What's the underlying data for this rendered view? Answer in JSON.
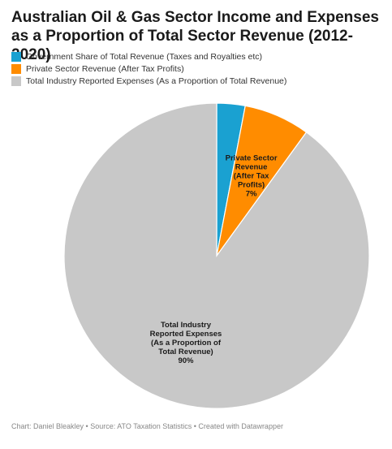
{
  "chart_data": {
    "type": "pie",
    "title": "Australian Oil & Gas Sector Income and Expenses as a Proportion of Total Sector Revenue (2012-2020)",
    "slices": [
      {
        "name": "Government Share of Total Revenue (Taxes and Royalties etc)",
        "value": 3,
        "color": "#1aa1d1",
        "label_lines": [],
        "value_text": ""
      },
      {
        "name": "Private Sector Revenue (After Tax Profits)",
        "value": 7,
        "color": "#ff8c00",
        "label_lines": [
          "Private Sector",
          "Revenue",
          "(After Tax",
          "Profits)"
        ],
        "value_text": "7%"
      },
      {
        "name": "Total Industry Reported Expenses (As a Proportion of Total Revenue)",
        "value": 90,
        "color": "#c8c8c8",
        "label_lines": [
          "Total Industry",
          "Reported Expenses",
          "(As a Proportion of",
          "Total Revenue)"
        ],
        "value_text": "90%"
      }
    ],
    "legend_position": "top-left"
  },
  "footer": {
    "text": "Chart: Daniel Bleakley • Source: ATO Taxation Statistics • Created with Datawrapper"
  }
}
